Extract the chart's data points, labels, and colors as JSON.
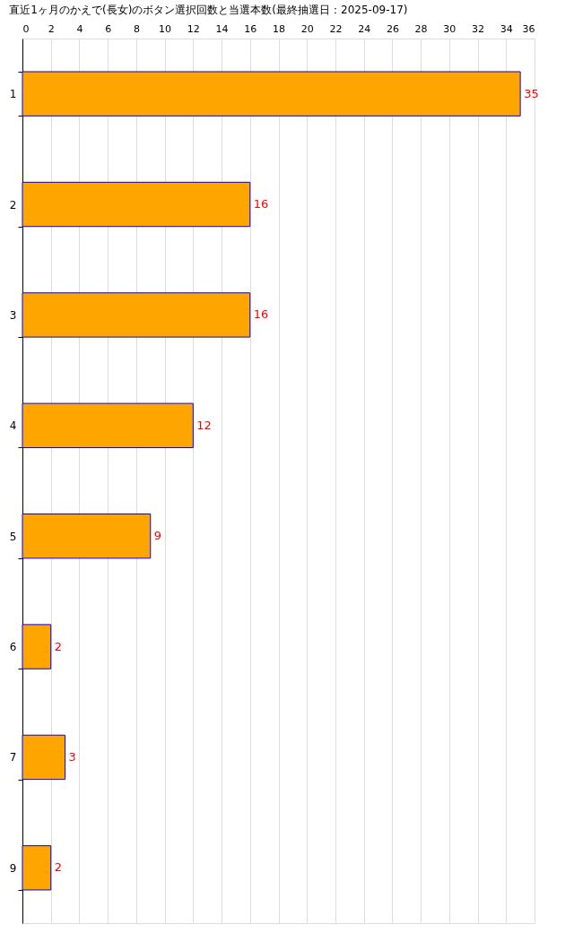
{
  "chart_data": {
    "type": "bar",
    "orientation": "horizontal",
    "title": "直近1ヶ月のかえで(長女)のボタン選択回数と当選本数(最終抽選日：2025-09-17)",
    "categories": [
      "1",
      "2",
      "3",
      "4",
      "5",
      "6",
      "7",
      "9"
    ],
    "values": [
      35,
      16,
      16,
      12,
      9,
      2,
      3,
      2
    ],
    "color": "#ffa500",
    "xlim": [
      0,
      36
    ],
    "xticks": [
      0,
      2,
      4,
      6,
      8,
      10,
      12,
      14,
      16,
      18,
      20,
      22,
      24,
      26,
      28,
      30,
      32,
      34,
      36
    ],
    "grid": "x",
    "data_labels": true
  }
}
